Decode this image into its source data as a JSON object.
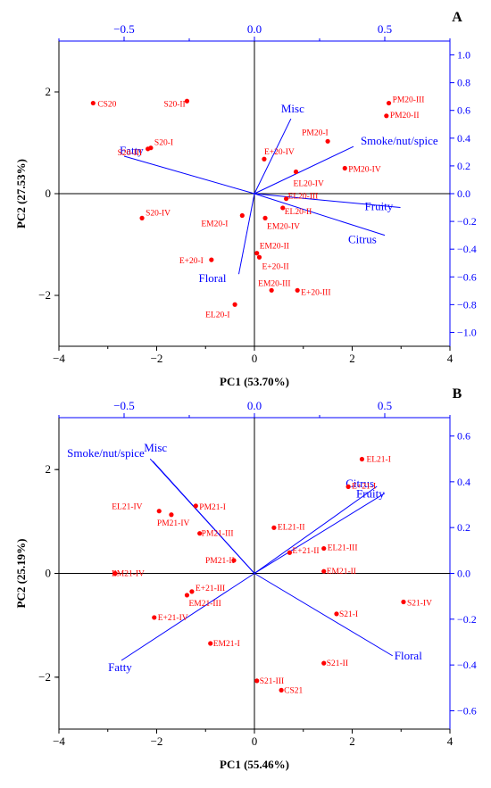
{
  "chart_data": [
    {
      "type": "scatter",
      "panel_label": "A",
      "xlabel": "PC1 (53.70%)",
      "ylabel": "PC2 (27.53%)",
      "xlim": [
        -4,
        4
      ],
      "ylim": [
        -3,
        3
      ],
      "top_xlim": [
        -0.75,
        0.75
      ],
      "right_ylim": [
        -1.1,
        1.1
      ],
      "x_ticks": [
        -4,
        -2,
        0,
        2,
        4
      ],
      "y_ticks": [
        -2,
        0,
        2
      ],
      "top_ticks": [
        -0.5,
        0.0,
        0.5
      ],
      "right_ticks": [
        -1.0,
        -0.8,
        -0.6,
        -0.4,
        -0.2,
        0.0,
        0.2,
        0.4,
        0.6,
        0.8,
        1.0
      ],
      "points": [
        {
          "label": "CS20",
          "x": -3.3,
          "y": 1.78
        },
        {
          "label": "S20-II",
          "x": -1.38,
          "y": 1.82
        },
        {
          "label": "S20-III",
          "x": -2.18,
          "y": 0.88
        },
        {
          "label": "S20-I",
          "x": -2.12,
          "y": 0.9
        },
        {
          "label": "S20-IV",
          "x": -2.3,
          "y": -0.48
        },
        {
          "label": "E+20-IV",
          "x": 0.2,
          "y": 0.68
        },
        {
          "label": "PM20-I",
          "x": 1.5,
          "y": 1.03
        },
        {
          "label": "PM20-III",
          "x": 2.75,
          "y": 1.78
        },
        {
          "label": "PM20-II",
          "x": 2.7,
          "y": 1.53
        },
        {
          "label": "PM20-IV",
          "x": 1.85,
          "y": 0.5
        },
        {
          "label": "EL20-IV",
          "x": 0.85,
          "y": 0.43
        },
        {
          "label": "EL20-III",
          "x": 0.65,
          "y": -0.1
        },
        {
          "label": "EL20-II",
          "x": 0.58,
          "y": -0.28
        },
        {
          "label": "EM20-I",
          "x": -0.25,
          "y": -0.43
        },
        {
          "label": "EM20-IV",
          "x": 0.22,
          "y": -0.48
        },
        {
          "label": "EM20-II",
          "x": 0.05,
          "y": -1.17
        },
        {
          "label": "E+20-II",
          "x": 0.1,
          "y": -1.25
        },
        {
          "label": "E+20-I",
          "x": -0.88,
          "y": -1.3
        },
        {
          "label": "EM20-III",
          "x": 0.35,
          "y": -1.9
        },
        {
          "label": "E+20-III",
          "x": 0.88,
          "y": -1.9
        },
        {
          "label": "EL20-I",
          "x": -0.4,
          "y": -2.18
        }
      ],
      "loadings": [
        {
          "label": "Misc",
          "x": 0.14,
          "y": 0.54
        },
        {
          "label": "Smoke/nut/spice",
          "x": 0.38,
          "y": 0.34
        },
        {
          "label": "Fatty",
          "x": -0.5,
          "y": 0.27
        },
        {
          "label": "Fruity",
          "x": 0.56,
          "y": -0.1
        },
        {
          "label": "Citrus",
          "x": 0.5,
          "y": -0.3
        },
        {
          "label": "Floral",
          "x": -0.06,
          "y": -0.58
        }
      ]
    },
    {
      "type": "scatter",
      "panel_label": "B",
      "xlabel": "PC1 (55.46%)",
      "ylabel": "PC2 (25.19%)",
      "xlim": [
        -4,
        4
      ],
      "ylim": [
        -3,
        3
      ],
      "top_xlim": [
        -0.75,
        0.75
      ],
      "right_ylim": [
        -0.68,
        0.68
      ],
      "x_ticks": [
        -4,
        -2,
        0,
        2,
        4
      ],
      "y_ticks": [
        -2,
        0,
        2
      ],
      "top_ticks": [
        -0.5,
        0.0,
        0.5
      ],
      "right_ticks": [
        -0.6,
        -0.4,
        -0.2,
        0.0,
        0.2,
        0.4,
        0.6
      ],
      "points": [
        {
          "label": "EL21-I",
          "x": 2.2,
          "y": 2.2
        },
        {
          "label": "E+21-I",
          "x": 1.92,
          "y": 1.67
        },
        {
          "label": "EL21-II",
          "x": 0.4,
          "y": 0.88
        },
        {
          "label": "EL21-III",
          "x": 1.42,
          "y": 0.48
        },
        {
          "label": "E+21-II",
          "x": 0.72,
          "y": 0.4
        },
        {
          "label": "EM21-II",
          "x": 1.42,
          "y": 0.04
        },
        {
          "label": "S21-IV",
          "x": 3.05,
          "y": -0.55
        },
        {
          "label": "S21-I",
          "x": 1.68,
          "y": -0.78
        },
        {
          "label": "S21-II",
          "x": 1.42,
          "y": -1.73
        },
        {
          "label": "S21-III",
          "x": 0.05,
          "y": -2.07
        },
        {
          "label": "CS21",
          "x": 0.55,
          "y": -2.25
        },
        {
          "label": "EL21-IV",
          "x": -1.95,
          "y": 1.2
        },
        {
          "label": "PM21-I",
          "x": -1.2,
          "y": 1.3
        },
        {
          "label": "PM21-IV",
          "x": -1.7,
          "y": 1.13
        },
        {
          "label": "PM21-III",
          "x": -1.12,
          "y": 0.77
        },
        {
          "label": "PM21-II",
          "x": -0.42,
          "y": 0.25
        },
        {
          "label": "EM21-IV",
          "x": -2.85,
          "y": 0.0
        },
        {
          "label": "E+21-III",
          "x": -1.28,
          "y": -0.35
        },
        {
          "label": "EM21-III",
          "x": -1.38,
          "y": -0.42
        },
        {
          "label": "E+21-IV",
          "x": -2.05,
          "y": -0.85
        },
        {
          "label": "EM21-I",
          "x": -0.9,
          "y": -1.35
        }
      ],
      "loadings": [
        {
          "label": "Misc",
          "x": -0.4,
          "y": 0.5
        },
        {
          "label": "Smoke/nut/spice",
          "x": -0.39,
          "y": 0.49
        },
        {
          "label": "Citrus",
          "x": 0.47,
          "y": 0.38
        },
        {
          "label": "Fruity",
          "x": 0.5,
          "y": 0.35
        },
        {
          "label": "Fatty",
          "x": -0.51,
          "y": -0.38
        },
        {
          "label": "Floral",
          "x": 0.53,
          "y": -0.36
        }
      ]
    }
  ],
  "colors": {
    "points": "#ff0000",
    "loadings": "#0000ff",
    "primary_axes": "#000000"
  }
}
